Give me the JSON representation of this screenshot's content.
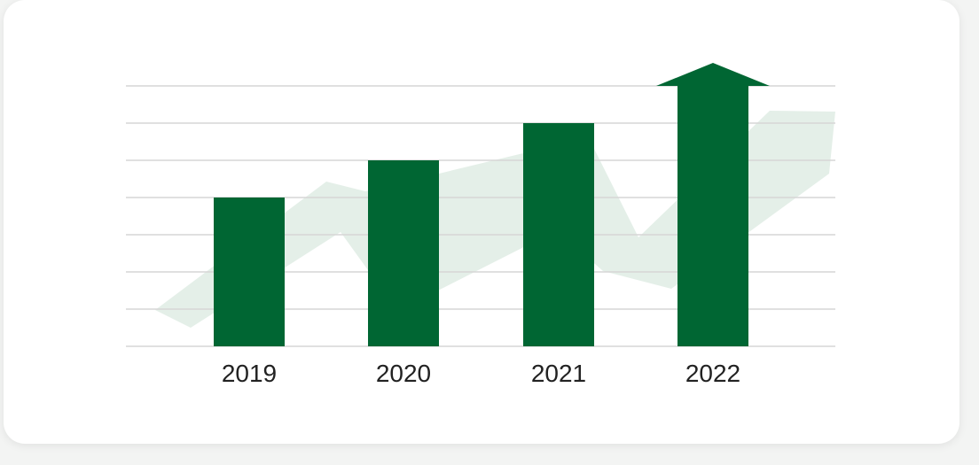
{
  "chart_data": {
    "type": "bar",
    "title": "",
    "xlabel": "",
    "ylabel": "",
    "categories": [
      "2019",
      "2020",
      "2021",
      "2022"
    ],
    "values": [
      4,
      5,
      6,
      7
    ],
    "ylim": [
      0,
      7
    ],
    "grid": true,
    "growth_arrow_on_last_bar": true,
    "colors": {
      "bar": "#006633",
      "trend_arrow": "#e4efe8",
      "grid": "#d6d6d6"
    }
  }
}
